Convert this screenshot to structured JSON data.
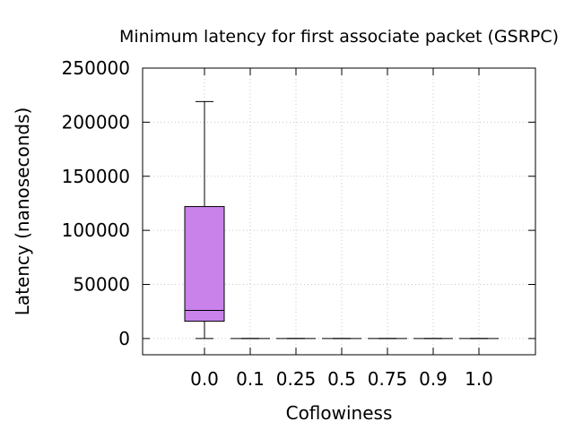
{
  "chart_data": {
    "type": "box",
    "title": "Minimum latency for first associate packet (GSRPC)",
    "xlabel": "Coflowiness",
    "ylabel": "Latency (nanoseconds)",
    "ylim": [
      -15000,
      250000
    ],
    "yticks": [
      0,
      50000,
      100000,
      150000,
      200000,
      250000
    ],
    "grid": true,
    "box_color": "#c882ea",
    "categories": [
      "0.0",
      "0.1",
      "0.25",
      "0.5",
      "0.75",
      "0.9",
      "1.0"
    ],
    "boxes": [
      {
        "category": "0.0",
        "min": 0,
        "q1": 16000,
        "median": 26000,
        "q3": 122000,
        "max": 219000
      },
      {
        "category": "0.1",
        "min": 0,
        "q1": 0,
        "median": 0,
        "q3": 0,
        "max": 0
      },
      {
        "category": "0.25",
        "min": 0,
        "q1": 0,
        "median": 0,
        "q3": 0,
        "max": 0
      },
      {
        "category": "0.5",
        "min": 0,
        "q1": 0,
        "median": 0,
        "q3": 0,
        "max": 0
      },
      {
        "category": "0.75",
        "min": 0,
        "q1": 0,
        "median": 0,
        "q3": 0,
        "max": 0
      },
      {
        "category": "0.9",
        "min": 0,
        "q1": 0,
        "median": 0,
        "q3": 0,
        "max": 0
      },
      {
        "category": "1.0",
        "min": 0,
        "q1": 0,
        "median": 0,
        "q3": 0,
        "max": 0
      }
    ]
  }
}
